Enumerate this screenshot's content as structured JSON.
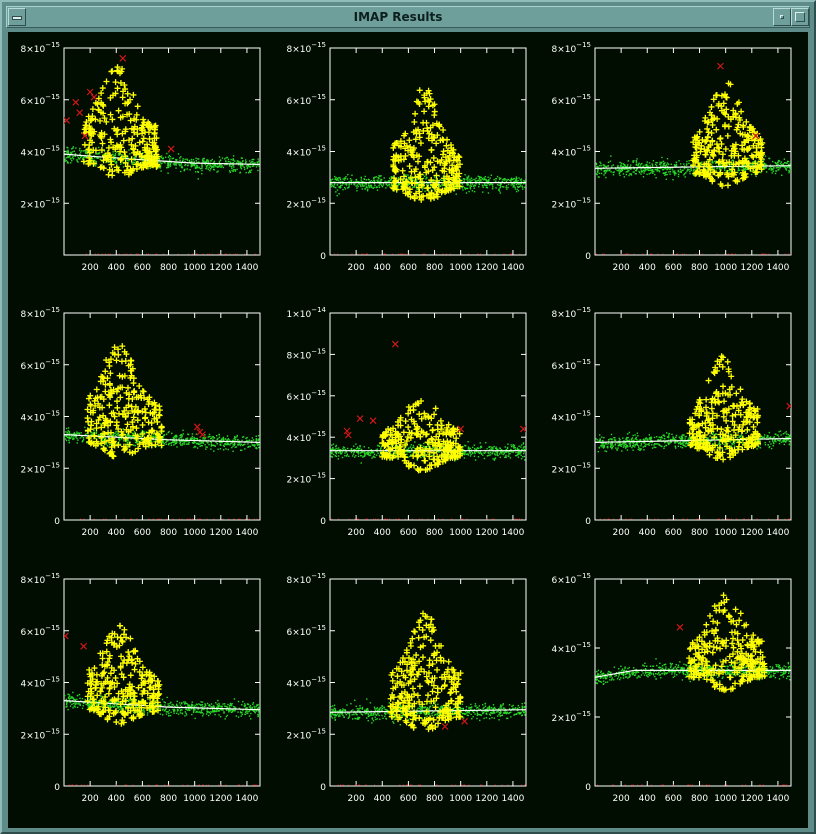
{
  "window": {
    "title": "IMAP Results"
  },
  "colors": {
    "background": "#000d00",
    "axes": "#ffffff",
    "background_points": "#2ad82a",
    "source_points": "#ffff00",
    "rejected_points": "#d01818",
    "fit_line": "#ffffff"
  },
  "chart_data": [
    {
      "type": "scatter",
      "xlim": [
        0,
        1500
      ],
      "ylim": [
        0,
        8e-15
      ],
      "xticks": [
        200,
        400,
        600,
        800,
        1000,
        1200,
        1400
      ],
      "yticks": [
        0,
        2e-15,
        4e-15,
        6e-15,
        8e-15
      ],
      "ytick_labels": [
        {
          "m": "",
          "e": ""
        },
        {
          "m": "2×10",
          "e": "−15"
        },
        {
          "m": "4×10",
          "e": "−15"
        },
        {
          "m": "6×10",
          "e": "−15"
        },
        {
          "m": "8×10",
          "e": "−15"
        }
      ],
      "background_line": [
        [
          0,
          3.9e-15
        ],
        [
          250,
          3.8e-15
        ],
        [
          700,
          3.65e-15
        ],
        [
          1000,
          3.55e-15
        ],
        [
          1500,
          3.5e-15
        ]
      ],
      "source": {
        "center": 400,
        "range": [
          150,
          720
        ],
        "max_y": 7.4e-15
      },
      "rejected": [
        [
          20,
          5.2e-15
        ],
        [
          90,
          5.9e-15
        ],
        [
          120,
          5.5e-15
        ],
        [
          160,
          4.6e-15
        ],
        [
          200,
          6.3e-15
        ],
        [
          230,
          6.1e-15
        ],
        [
          450,
          7.6e-15
        ],
        [
          820,
          4.1e-15
        ]
      ]
    },
    {
      "type": "scatter",
      "xlim": [
        0,
        1500
      ],
      "ylim": [
        0,
        8e-15
      ],
      "xticks": [
        200,
        400,
        600,
        800,
        1000,
        1200,
        1400
      ],
      "yticks": [
        0,
        2e-15,
        4e-15,
        6e-15,
        8e-15
      ],
      "ytick_labels": [
        {
          "m": "0",
          "e": ""
        },
        {
          "m": "2×10",
          "e": "−15"
        },
        {
          "m": "4×10",
          "e": "−15"
        },
        {
          "m": "6×10",
          "e": "−15"
        },
        {
          "m": "8×10",
          "e": "−15"
        }
      ],
      "background_line": [
        [
          0,
          2.8e-15
        ],
        [
          1500,
          2.8e-15
        ]
      ],
      "source": {
        "center": 720,
        "range": [
          480,
          1000
        ],
        "max_y": 6.5e-15
      },
      "rejected": []
    },
    {
      "type": "scatter",
      "xlim": [
        0,
        1500
      ],
      "ylim": [
        0,
        8e-15
      ],
      "xticks": [
        200,
        400,
        600,
        800,
        1000,
        1200,
        1400
      ],
      "yticks": [
        0,
        2e-15,
        4e-15,
        6e-15,
        8e-15
      ],
      "ytick_labels": [
        {
          "m": "0",
          "e": ""
        },
        {
          "m": "2×10",
          "e": "−15"
        },
        {
          "m": "4×10",
          "e": "−15"
        },
        {
          "m": "6×10",
          "e": "−15"
        },
        {
          "m": "8×10",
          "e": "−15"
        }
      ],
      "background_line": [
        [
          0,
          3.35e-15
        ],
        [
          1500,
          3.45e-15
        ]
      ],
      "source": {
        "center": 1000,
        "range": [
          750,
          1280
        ],
        "max_y": 6.8e-15
      },
      "rejected": [
        [
          960,
          7.3e-15
        ],
        [
          1230,
          4.6e-15
        ]
      ]
    },
    {
      "type": "scatter",
      "xlim": [
        0,
        1500
      ],
      "ylim": [
        0,
        8e-15
      ],
      "xticks": [
        200,
        400,
        600,
        800,
        1000,
        1200,
        1400
      ],
      "yticks": [
        0,
        2e-15,
        4e-15,
        6e-15,
        8e-15
      ],
      "ytick_labels": [
        {
          "m": "0",
          "e": ""
        },
        {
          "m": "2×10",
          "e": "−15"
        },
        {
          "m": "4×10",
          "e": "−15"
        },
        {
          "m": "6×10",
          "e": "−15"
        },
        {
          "m": "8×10",
          "e": "−15"
        }
      ],
      "background_line": [
        [
          0,
          3.3e-15
        ],
        [
          800,
          3.1e-15
        ],
        [
          1500,
          3e-15
        ]
      ],
      "source": {
        "center": 420,
        "range": [
          180,
          750
        ],
        "max_y": 7e-15
      },
      "rejected": [
        [
          1020,
          3.6e-15
        ],
        [
          1040,
          3.4e-15
        ],
        [
          1060,
          3.3e-15
        ]
      ]
    },
    {
      "type": "scatter",
      "xlim": [
        0,
        1500
      ],
      "ylim": [
        0,
        1e-14
      ],
      "xticks": [
        200,
        400,
        600,
        800,
        1000,
        1200,
        1400
      ],
      "yticks": [
        0,
        2e-15,
        4e-15,
        6e-15,
        8e-15,
        1e-14
      ],
      "ytick_labels": [
        {
          "m": "0",
          "e": ""
        },
        {
          "m": "2×10",
          "e": "−15"
        },
        {
          "m": "4×10",
          "e": "−15"
        },
        {
          "m": "6×10",
          "e": "−15"
        },
        {
          "m": "8×10",
          "e": "−15"
        },
        {
          "m": "1×10",
          "e": "−14"
        }
      ],
      "background_line": [
        [
          0,
          3.35e-15
        ],
        [
          1500,
          3.35e-15
        ]
      ],
      "source": {
        "center": 700,
        "range": [
          400,
          1000
        ],
        "max_y": 6e-15
      },
      "rejected": [
        [
          130,
          4.3e-15
        ],
        [
          140,
          4.1e-15
        ],
        [
          230,
          4.9e-15
        ],
        [
          330,
          4.8e-15
        ],
        [
          500,
          8.5e-15
        ],
        [
          1000,
          4.4e-15
        ],
        [
          1480,
          4.4e-15
        ]
      ]
    },
    {
      "type": "scatter",
      "xlim": [
        0,
        1500
      ],
      "ylim": [
        0,
        8e-15
      ],
      "xticks": [
        200,
        400,
        600,
        800,
        1000,
        1200,
        1400
      ],
      "yticks": [
        0,
        2e-15,
        4e-15,
        6e-15,
        8e-15
      ],
      "ytick_labels": [
        {
          "m": "0",
          "e": ""
        },
        {
          "m": "2×10",
          "e": "−15"
        },
        {
          "m": "4×10",
          "e": "−15"
        },
        {
          "m": "6×10",
          "e": "−15"
        },
        {
          "m": "8×10",
          "e": "−15"
        }
      ],
      "background_line": [
        [
          0,
          3e-15
        ],
        [
          1500,
          3.15e-15
        ]
      ],
      "source": {
        "center": 980,
        "range": [
          720,
          1250
        ],
        "max_y": 6.4e-15
      },
      "rejected": [
        [
          1490,
          4.4e-15
        ]
      ]
    },
    {
      "type": "scatter",
      "xlim": [
        0,
        1500
      ],
      "ylim": [
        0,
        8e-15
      ],
      "xticks": [
        200,
        400,
        600,
        800,
        1000,
        1200,
        1400
      ],
      "yticks": [
        0,
        2e-15,
        4e-15,
        6e-15,
        8e-15
      ],
      "ytick_labels": [
        {
          "m": "0",
          "e": ""
        },
        {
          "m": "2×10",
          "e": "−15"
        },
        {
          "m": "4×10",
          "e": "−15"
        },
        {
          "m": "6×10",
          "e": "−15"
        },
        {
          "m": "8×10",
          "e": "−15"
        }
      ],
      "background_line": [
        [
          0,
          3.3e-15
        ],
        [
          800,
          3.05e-15
        ],
        [
          1500,
          2.95e-15
        ]
      ],
      "source": {
        "center": 420,
        "range": [
          180,
          730
        ],
        "max_y": 6.3e-15
      },
      "rejected": [
        [
          10,
          5.8e-15
        ],
        [
          150,
          5.4e-15
        ]
      ]
    },
    {
      "type": "scatter",
      "xlim": [
        0,
        1500
      ],
      "ylim": [
        0,
        8e-15
      ],
      "xticks": [
        200,
        400,
        600,
        800,
        1000,
        1200,
        1400
      ],
      "yticks": [
        0,
        2e-15,
        4e-15,
        6e-15,
        8e-15
      ],
      "ytick_labels": [
        {
          "m": "0",
          "e": ""
        },
        {
          "m": "2×10",
          "e": "−15"
        },
        {
          "m": "4×10",
          "e": "−15"
        },
        {
          "m": "6×10",
          "e": "−15"
        },
        {
          "m": "8×10",
          "e": "−15"
        }
      ],
      "background_line": [
        [
          0,
          2.85e-15
        ],
        [
          1500,
          2.95e-15
        ]
      ],
      "source": {
        "center": 720,
        "range": [
          460,
          1000
        ],
        "max_y": 6.9e-15
      },
      "rejected": [
        [
          880,
          2.3e-15
        ],
        [
          1030,
          2.5e-15
        ]
      ]
    },
    {
      "type": "scatter",
      "xlim": [
        0,
        1500
      ],
      "ylim": [
        0,
        6e-15
      ],
      "xticks": [
        200,
        400,
        600,
        800,
        1000,
        1200,
        1400
      ],
      "yticks": [
        0,
        2e-15,
        4e-15,
        6e-15
      ],
      "ytick_labels": [
        {
          "m": "0",
          "e": ""
        },
        {
          "m": "2×10",
          "e": "−15"
        },
        {
          "m": "4×10",
          "e": "−15"
        },
        {
          "m": "6×10",
          "e": "−15"
        }
      ],
      "background_line": [
        [
          0,
          3.15e-15
        ],
        [
          300,
          3.35e-15
        ],
        [
          1500,
          3.35e-15
        ]
      ],
      "source": {
        "center": 1000,
        "range": [
          720,
          1300
        ],
        "max_y": 5.6e-15
      },
      "rejected": [
        [
          650,
          4.6e-15
        ]
      ]
    }
  ]
}
